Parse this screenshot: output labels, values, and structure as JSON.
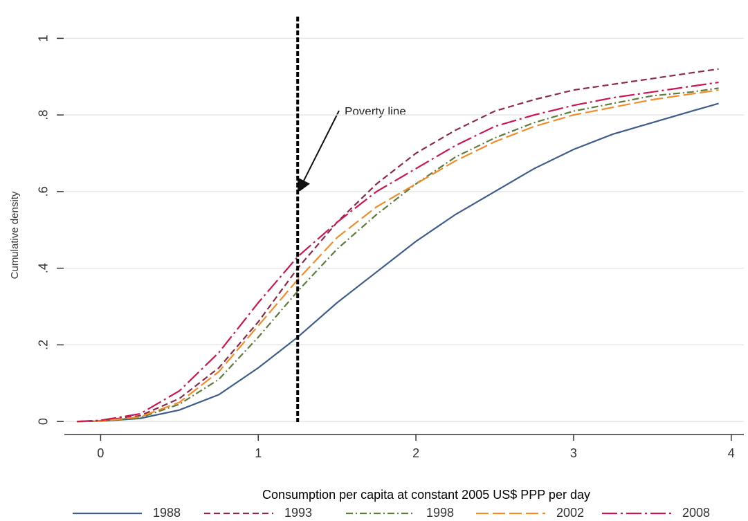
{
  "chart_data": {
    "type": "line",
    "ylabel": "Cumulative density",
    "xlabel": "Consumption per capita at constant 2005 US$ PPP per day",
    "annotation": "Poverty line",
    "poverty_line": 1.25,
    "x": [
      -0.15,
      0,
      0.25,
      0.5,
      0.75,
      1,
      1.25,
      1.5,
      1.75,
      2,
      2.25,
      2.5,
      2.75,
      3,
      3.25,
      3.5,
      3.75,
      3.92
    ],
    "series": [
      {
        "name": "1988",
        "color": "#3e5c8a",
        "dash": "",
        "values": [
          0,
          0.001,
          0.008,
          0.03,
          0.07,
          0.14,
          0.22,
          0.31,
          0.39,
          0.47,
          0.54,
          0.6,
          0.66,
          0.71,
          0.75,
          0.78,
          0.81,
          0.83
        ]
      },
      {
        "name": "1993",
        "color": "#8b2a4a",
        "dash": "9,5",
        "values": [
          0,
          0.002,
          0.015,
          0.06,
          0.14,
          0.26,
          0.4,
          0.52,
          0.62,
          0.7,
          0.76,
          0.81,
          0.84,
          0.865,
          0.88,
          0.895,
          0.91,
          0.92
        ]
      },
      {
        "name": "1998",
        "color": "#5a7d3a",
        "dash": "10,4,2,4",
        "values": [
          0,
          0.001,
          0.01,
          0.045,
          0.11,
          0.22,
          0.34,
          0.45,
          0.54,
          0.62,
          0.69,
          0.74,
          0.78,
          0.81,
          0.83,
          0.85,
          0.86,
          0.87
        ]
      },
      {
        "name": "2002",
        "color": "#f28c28",
        "dash": "18,6",
        "values": [
          0,
          0.001,
          0.012,
          0.05,
          0.13,
          0.25,
          0.37,
          0.48,
          0.56,
          0.62,
          0.68,
          0.73,
          0.77,
          0.8,
          0.82,
          0.84,
          0.855,
          0.865
        ]
      },
      {
        "name": "2008",
        "color": "#cc1450",
        "dash": "22,5,3,5",
        "values": [
          0,
          0.003,
          0.02,
          0.08,
          0.18,
          0.31,
          0.43,
          0.52,
          0.6,
          0.66,
          0.72,
          0.77,
          0.8,
          0.825,
          0.845,
          0.86,
          0.875,
          0.885
        ]
      }
    ],
    "xlim": [
      -0.23,
      4.08
    ],
    "xticks": [
      0,
      1,
      2,
      3,
      4
    ],
    "ylim": [
      -0.034,
      1.1
    ],
    "yticks": [
      0,
      {
        "value": 0.2,
        "label": ".2"
      },
      {
        "value": 0.4,
        "label": ".4"
      },
      {
        "value": 0.6,
        "label": ".6"
      },
      {
        "value": 0.8,
        "label": ".8"
      },
      1
    ],
    "grid": true
  }
}
